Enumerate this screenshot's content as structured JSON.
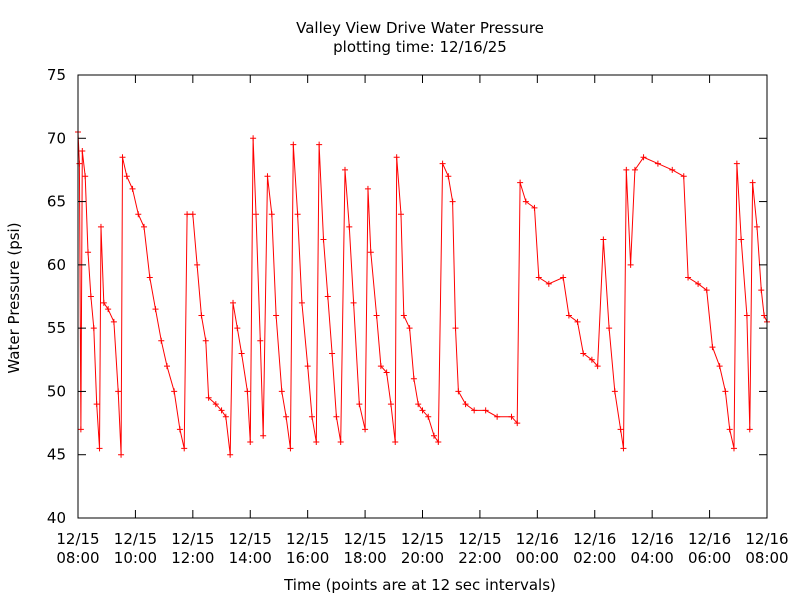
{
  "chart_data": {
    "type": "line",
    "title": "Valley View Drive Water Pressure",
    "subtitle": "plotting time: 12/16/25",
    "xlabel": "Time (points are at 12 sec intervals)",
    "ylabel": "Water Pressure (psi)",
    "ylim": [
      40,
      75
    ],
    "yticks": [
      40,
      45,
      50,
      55,
      60,
      65,
      70,
      75
    ],
    "xlim_hours": [
      8,
      32
    ],
    "xticks": [
      {
        "hour": 8,
        "date": "12/15",
        "time": "08:00"
      },
      {
        "hour": 10,
        "date": "12/15",
        "time": "10:00"
      },
      {
        "hour": 12,
        "date": "12/15",
        "time": "12:00"
      },
      {
        "hour": 14,
        "date": "12/15",
        "time": "14:00"
      },
      {
        "hour": 16,
        "date": "12/15",
        "time": "16:00"
      },
      {
        "hour": 18,
        "date": "12/15",
        "time": "18:00"
      },
      {
        "hour": 20,
        "date": "12/15",
        "time": "20:00"
      },
      {
        "hour": 22,
        "date": "12/15",
        "time": "22:00"
      },
      {
        "hour": 24,
        "date": "12/16",
        "time": "00:00"
      },
      {
        "hour": 26,
        "date": "12/16",
        "time": "02:00"
      },
      {
        "hour": 28,
        "date": "12/16",
        "time": "04:00"
      },
      {
        "hour": 30,
        "date": "12/16",
        "time": "06:00"
      },
      {
        "hour": 32,
        "date": "12/16",
        "time": "08:00"
      }
    ],
    "grid": false,
    "marker": "+",
    "series_color": "#ff0000",
    "series": [
      {
        "values_description_hours_psi": true,
        "points": [
          [
            8.0,
            70.5
          ],
          [
            8.05,
            68.0
          ],
          [
            8.1,
            47.0
          ],
          [
            8.15,
            69.0
          ],
          [
            8.25,
            67.0
          ],
          [
            8.35,
            61.0
          ],
          [
            8.45,
            57.5
          ],
          [
            8.55,
            55.0
          ],
          [
            8.65,
            49.0
          ],
          [
            8.75,
            45.5
          ],
          [
            8.8,
            63.0
          ],
          [
            8.9,
            57.0
          ],
          [
            9.05,
            56.5
          ],
          [
            9.25,
            55.5
          ],
          [
            9.4,
            50.0
          ],
          [
            9.5,
            45.0
          ],
          [
            9.55,
            68.5
          ],
          [
            9.7,
            67.0
          ],
          [
            9.9,
            66.0
          ],
          [
            10.1,
            64.0
          ],
          [
            10.3,
            63.0
          ],
          [
            10.5,
            59.0
          ],
          [
            10.7,
            56.5
          ],
          [
            10.9,
            54.0
          ],
          [
            11.1,
            52.0
          ],
          [
            11.35,
            50.0
          ],
          [
            11.55,
            47.0
          ],
          [
            11.7,
            45.5
          ],
          [
            11.8,
            64.0
          ],
          [
            12.0,
            64.0
          ],
          [
            12.15,
            60.0
          ],
          [
            12.3,
            56.0
          ],
          [
            12.45,
            54.0
          ],
          [
            12.55,
            49.5
          ],
          [
            12.8,
            49.0
          ],
          [
            13.0,
            48.5
          ],
          [
            13.15,
            48.0
          ],
          [
            13.3,
            45.0
          ],
          [
            13.4,
            57.0
          ],
          [
            13.55,
            55.0
          ],
          [
            13.7,
            53.0
          ],
          [
            13.9,
            50.0
          ],
          [
            14.0,
            46.0
          ],
          [
            14.1,
            70.0
          ],
          [
            14.2,
            64.0
          ],
          [
            14.35,
            54.0
          ],
          [
            14.45,
            46.5
          ],
          [
            14.6,
            67.0
          ],
          [
            14.75,
            64.0
          ],
          [
            14.9,
            56.0
          ],
          [
            15.1,
            50.0
          ],
          [
            15.25,
            48.0
          ],
          [
            15.4,
            45.5
          ],
          [
            15.5,
            69.5
          ],
          [
            15.65,
            64.0
          ],
          [
            15.8,
            57.0
          ],
          [
            16.0,
            52.0
          ],
          [
            16.15,
            48.0
          ],
          [
            16.3,
            46.0
          ],
          [
            16.4,
            69.5
          ],
          [
            16.55,
            62.0
          ],
          [
            16.7,
            57.5
          ],
          [
            16.85,
            53.0
          ],
          [
            17.0,
            48.0
          ],
          [
            17.15,
            46.0
          ],
          [
            17.3,
            67.5
          ],
          [
            17.45,
            63.0
          ],
          [
            17.6,
            57.0
          ],
          [
            17.8,
            49.0
          ],
          [
            18.0,
            47.0
          ],
          [
            18.1,
            66.0
          ],
          [
            18.2,
            61.0
          ],
          [
            18.4,
            56.0
          ],
          [
            18.55,
            52.0
          ],
          [
            18.75,
            51.5
          ],
          [
            18.9,
            49.0
          ],
          [
            19.05,
            46.0
          ],
          [
            19.1,
            68.5
          ],
          [
            19.25,
            64.0
          ],
          [
            19.35,
            56.0
          ],
          [
            19.55,
            55.0
          ],
          [
            19.7,
            51.0
          ],
          [
            19.85,
            49.0
          ],
          [
            20.0,
            48.5
          ],
          [
            20.2,
            48.0
          ],
          [
            20.4,
            46.5
          ],
          [
            20.55,
            46.0
          ],
          [
            20.7,
            68.0
          ],
          [
            20.9,
            67.0
          ],
          [
            21.05,
            65.0
          ],
          [
            21.15,
            55.0
          ],
          [
            21.25,
            50.0
          ],
          [
            21.5,
            49.0
          ],
          [
            21.8,
            48.5
          ],
          [
            22.2,
            48.5
          ],
          [
            22.6,
            48.0
          ],
          [
            23.1,
            48.0
          ],
          [
            23.3,
            47.5
          ],
          [
            23.4,
            66.5
          ],
          [
            23.6,
            65.0
          ],
          [
            23.9,
            64.5
          ],
          [
            24.05,
            59.0
          ],
          [
            24.4,
            58.5
          ],
          [
            24.9,
            59.0
          ],
          [
            25.1,
            56.0
          ],
          [
            25.4,
            55.5
          ],
          [
            25.6,
            53.0
          ],
          [
            25.9,
            52.5
          ],
          [
            26.1,
            52.0
          ],
          [
            26.3,
            62.0
          ],
          [
            26.5,
            55.0
          ],
          [
            26.7,
            50.0
          ],
          [
            26.9,
            47.0
          ],
          [
            27.0,
            45.5
          ],
          [
            27.1,
            67.5
          ],
          [
            27.25,
            60.0
          ],
          [
            27.4,
            67.5
          ],
          [
            27.7,
            68.5
          ],
          [
            28.2,
            68.0
          ],
          [
            28.7,
            67.5
          ],
          [
            29.1,
            67.0
          ],
          [
            29.25,
            59.0
          ],
          [
            29.6,
            58.5
          ],
          [
            29.9,
            58.0
          ],
          [
            30.1,
            53.5
          ],
          [
            30.35,
            52.0
          ],
          [
            30.55,
            50.0
          ],
          [
            30.7,
            47.0
          ],
          [
            30.85,
            45.5
          ],
          [
            30.95,
            68.0
          ],
          [
            31.1,
            62.0
          ],
          [
            31.3,
            56.0
          ],
          [
            31.4,
            47.0
          ],
          [
            31.5,
            66.5
          ],
          [
            31.65,
            63.0
          ],
          [
            31.8,
            58.0
          ],
          [
            31.9,
            56.0
          ],
          [
            32.0,
            55.5
          ]
        ]
      }
    ]
  }
}
